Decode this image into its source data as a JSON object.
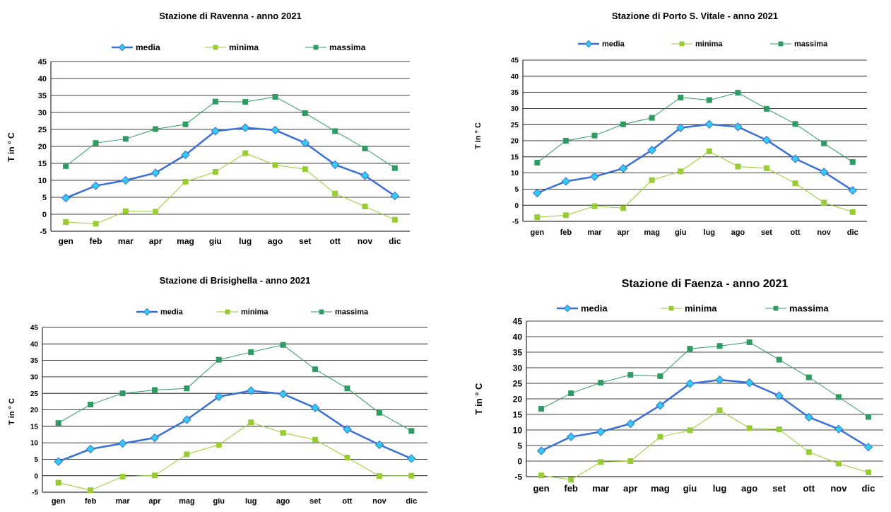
{
  "legend_labels": [
    "media",
    "minima",
    "massima"
  ],
  "colors": {
    "media": "#3a6fd8",
    "media_marker": "#33ccee",
    "minima": "#99cc33",
    "massima": "#2f9a63",
    "grid": "#000000"
  },
  "chart_data": [
    {
      "type": "line",
      "title": "Stazione di Ravenna - anno 2021",
      "ylabel": "T in ° C",
      "xlabel": "",
      "categories": [
        "gen",
        "feb",
        "mar",
        "apr",
        "mag",
        "giu",
        "lug",
        "ago",
        "set",
        "ott",
        "nov",
        "dic"
      ],
      "ylim": [
        -5,
        45
      ],
      "yticks": [
        "-5",
        "0",
        "5",
        "10",
        "15",
        "20",
        "25",
        "30",
        "35",
        "40",
        "45"
      ],
      "grid": true,
      "legend_position": "top",
      "series": [
        {
          "name": "media",
          "values": [
            4.8,
            8.4,
            10.0,
            12.2,
            17.5,
            24.5,
            25.5,
            24.8,
            21.0,
            14.6,
            11.4,
            5.4
          ]
        },
        {
          "name": "minima",
          "values": [
            -2.3,
            -2.8,
            0.9,
            0.8,
            9.6,
            12.5,
            18.0,
            14.5,
            13.3,
            6.1,
            2.3,
            -1.6
          ]
        },
        {
          "name": "massima",
          "values": [
            14.2,
            21.0,
            22.2,
            25.1,
            26.5,
            33.2,
            33.1,
            34.6,
            29.8,
            24.5,
            19.4,
            13.6
          ]
        }
      ]
    },
    {
      "type": "line",
      "title": "Stazione di Porto S. Vitale - anno 2021",
      "ylabel": "T in ° C",
      "xlabel": "",
      "categories": [
        "gen",
        "feb",
        "mar",
        "apr",
        "mag",
        "giu",
        "lug",
        "ago",
        "set",
        "ott",
        "nov",
        "dic"
      ],
      "ylim": [
        -5,
        45
      ],
      "yticks": [
        "-5",
        "0",
        "5",
        "10",
        "15",
        "20",
        "25",
        "30",
        "35",
        "40",
        "45"
      ],
      "grid": true,
      "legend_position": "top",
      "series": [
        {
          "name": "media",
          "values": [
            3.8,
            7.4,
            8.9,
            11.4,
            17.1,
            24.0,
            25.1,
            24.3,
            20.2,
            14.4,
            10.3,
            4.6
          ]
        },
        {
          "name": "minima",
          "values": [
            -3.7,
            -3.1,
            -0.3,
            -0.9,
            7.8,
            10.5,
            16.7,
            12.0,
            11.5,
            6.8,
            0.8,
            -2.1
          ]
        },
        {
          "name": "massima",
          "values": [
            13.2,
            20.0,
            21.6,
            25.1,
            27.1,
            33.4,
            32.6,
            34.9,
            29.9,
            25.2,
            19.2,
            13.4
          ]
        }
      ]
    },
    {
      "type": "line",
      "title": "Stazione di Brisighella - anno 2021",
      "ylabel": "T in ° C",
      "xlabel": "",
      "categories": [
        "gen",
        "feb",
        "mar",
        "apr",
        "mag",
        "giu",
        "lug",
        "ago",
        "set",
        "ott",
        "nov",
        "dic"
      ],
      "ylim": [
        -5,
        45
      ],
      "yticks": [
        "-5",
        "0",
        "5",
        "10",
        "15",
        "20",
        "25",
        "30",
        "35",
        "40",
        "45"
      ],
      "grid": true,
      "legend_position": "top",
      "series": [
        {
          "name": "media",
          "values": [
            4.3,
            8.1,
            9.8,
            11.5,
            17.0,
            24.0,
            25.8,
            24.8,
            20.6,
            14.1,
            9.4,
            5.2
          ]
        },
        {
          "name": "minima",
          "values": [
            -2.1,
            -4.4,
            -0.3,
            0.1,
            6.5,
            9.4,
            16.2,
            13.0,
            10.9,
            5.5,
            -0.1,
            0.0
          ]
        },
        {
          "name": "massima",
          "values": [
            16.0,
            21.6,
            25.0,
            26.0,
            26.5,
            35.2,
            37.5,
            39.7,
            32.3,
            26.5,
            19.1,
            13.6
          ]
        }
      ]
    },
    {
      "type": "line",
      "title": "Stazione di Faenza - anno 2021",
      "ylabel": "T in ° C",
      "xlabel": "",
      "categories": [
        "gen",
        "feb",
        "mar",
        "apr",
        "mag",
        "giu",
        "lug",
        "ago",
        "set",
        "ott",
        "nov",
        "dic"
      ],
      "ylim": [
        -5,
        45
      ],
      "yticks": [
        "-5",
        "0",
        "5",
        "10",
        "15",
        "20",
        "25",
        "30",
        "35",
        "40",
        "45"
      ],
      "grid": true,
      "legend_position": "top",
      "series": [
        {
          "name": "media",
          "values": [
            3.3,
            7.8,
            9.4,
            12.0,
            17.9,
            24.9,
            26.1,
            25.2,
            21.0,
            14.1,
            10.3,
            4.5
          ]
        },
        {
          "name": "minima",
          "values": [
            -4.6,
            -6.0,
            -0.3,
            0.0,
            7.8,
            9.9,
            16.3,
            10.6,
            10.2,
            2.9,
            -0.8,
            -3.6
          ]
        },
        {
          "name": "massima",
          "values": [
            16.8,
            21.8,
            25.2,
            27.7,
            27.3,
            36.1,
            37.0,
            38.2,
            32.6,
            26.9,
            20.6,
            14.2
          ]
        }
      ]
    }
  ]
}
